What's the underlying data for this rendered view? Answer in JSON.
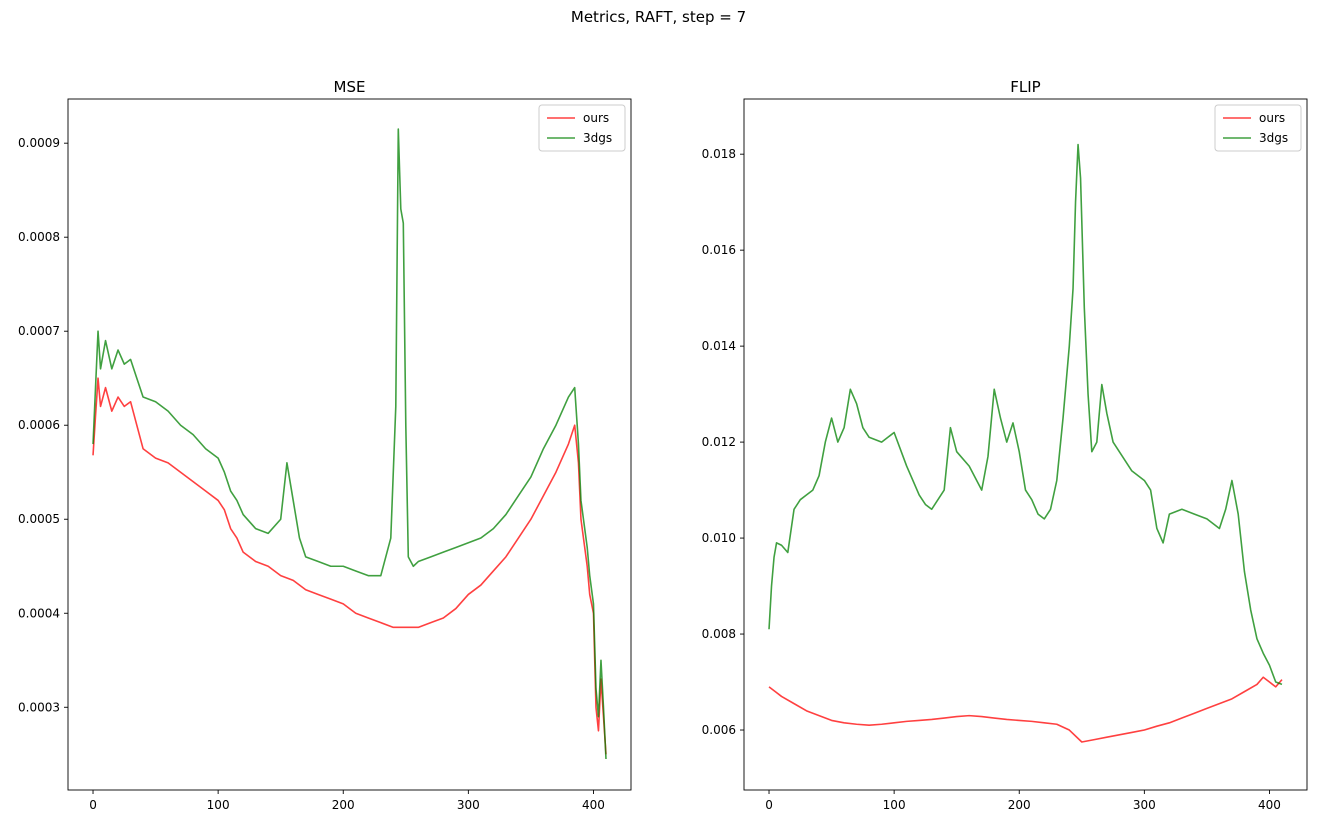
{
  "figure": {
    "suptitle": "Metrics, RAFT, step = 7"
  },
  "chart_data": [
    {
      "type": "line",
      "title": "MSE",
      "xlabel": "",
      "ylabel": "",
      "xlim": [
        -20,
        430
      ],
      "ylim": [
        0.000212,
        0.000947
      ],
      "xticks": [
        0,
        100,
        200,
        300,
        400
      ],
      "xtick_labels": [
        "0",
        "100",
        "200",
        "300",
        "400"
      ],
      "yticks": [
        0.0003,
        0.0004,
        0.0005,
        0.0006,
        0.0007,
        0.0008,
        0.0009
      ],
      "ytick_labels": [
        "0.0003",
        "0.0004",
        "0.0005",
        "0.0006",
        "0.0007",
        "0.0008",
        "0.0009"
      ],
      "grid": false,
      "legend": "top-right",
      "series": [
        {
          "name": "ours",
          "color": "#ff0000",
          "alpha": 0.75,
          "points": [
            [
              0,
              0.000568
            ],
            [
              2,
              0.00061
            ],
            [
              4,
              0.00065
            ],
            [
              6,
              0.00062
            ],
            [
              10,
              0.00064
            ],
            [
              15,
              0.000615
            ],
            [
              20,
              0.00063
            ],
            [
              25,
              0.00062
            ],
            [
              30,
              0.000625
            ],
            [
              35,
              0.0006
            ],
            [
              40,
              0.000575
            ],
            [
              50,
              0.000565
            ],
            [
              60,
              0.00056
            ],
            [
              70,
              0.00055
            ],
            [
              80,
              0.00054
            ],
            [
              90,
              0.00053
            ],
            [
              100,
              0.00052
            ],
            [
              105,
              0.00051
            ],
            [
              110,
              0.00049
            ],
            [
              115,
              0.00048
            ],
            [
              120,
              0.000465
            ],
            [
              130,
              0.000455
            ],
            [
              140,
              0.00045
            ],
            [
              150,
              0.00044
            ],
            [
              160,
              0.000435
            ],
            [
              170,
              0.000425
            ],
            [
              180,
              0.00042
            ],
            [
              190,
              0.000415
            ],
            [
              200,
              0.00041
            ],
            [
              210,
              0.0004
            ],
            [
              220,
              0.000395
            ],
            [
              230,
              0.00039
            ],
            [
              240,
              0.000385
            ],
            [
              250,
              0.000385
            ],
            [
              260,
              0.000385
            ],
            [
              270,
              0.00039
            ],
            [
              280,
              0.000395
            ],
            [
              290,
              0.000405
            ],
            [
              300,
              0.00042
            ],
            [
              310,
              0.00043
            ],
            [
              320,
              0.000445
            ],
            [
              330,
              0.00046
            ],
            [
              340,
              0.00048
            ],
            [
              350,
              0.0005
            ],
            [
              360,
              0.000525
            ],
            [
              370,
              0.00055
            ],
            [
              380,
              0.00058
            ],
            [
              385,
              0.0006
            ],
            [
              388,
              0.00056
            ],
            [
              390,
              0.0005
            ],
            [
              393,
              0.00047
            ],
            [
              395,
              0.00045
            ],
            [
              397,
              0.00042
            ],
            [
              400,
              0.0004
            ],
            [
              402,
              0.0003
            ],
            [
              404,
              0.000275
            ],
            [
              406,
              0.00033
            ],
            [
              408,
              0.00029
            ],
            [
              410,
              0.00025
            ]
          ]
        },
        {
          "name": "3dgs",
          "color": "#008000",
          "alpha": 0.75,
          "points": [
            [
              0,
              0.00058
            ],
            [
              2,
              0.00064
            ],
            [
              4,
              0.0007
            ],
            [
              6,
              0.00066
            ],
            [
              10,
              0.00069
            ],
            [
              15,
              0.00066
            ],
            [
              20,
              0.00068
            ],
            [
              25,
              0.000665
            ],
            [
              30,
              0.00067
            ],
            [
              35,
              0.00065
            ],
            [
              40,
              0.00063
            ],
            [
              50,
              0.000625
            ],
            [
              60,
              0.000615
            ],
            [
              70,
              0.0006
            ],
            [
              80,
              0.00059
            ],
            [
              90,
              0.000575
            ],
            [
              100,
              0.000565
            ],
            [
              105,
              0.00055
            ],
            [
              110,
              0.00053
            ],
            [
              115,
              0.00052
            ],
            [
              120,
              0.000505
            ],
            [
              130,
              0.00049
            ],
            [
              140,
              0.000485
            ],
            [
              150,
              0.0005
            ],
            [
              155,
              0.00056
            ],
            [
              160,
              0.00052
            ],
            [
              165,
              0.00048
            ],
            [
              170,
              0.00046
            ],
            [
              180,
              0.000455
            ],
            [
              190,
              0.00045
            ],
            [
              200,
              0.00045
            ],
            [
              210,
              0.000445
            ],
            [
              220,
              0.00044
            ],
            [
              230,
              0.00044
            ],
            [
              238,
              0.00048
            ],
            [
              242,
              0.00062
            ],
            [
              244,
              0.000915
            ],
            [
              246,
              0.00083
            ],
            [
              248,
              0.000815
            ],
            [
              250,
              0.0006
            ],
            [
              252,
              0.00046
            ],
            [
              256,
              0.00045
            ],
            [
              260,
              0.000455
            ],
            [
              270,
              0.00046
            ],
            [
              280,
              0.000465
            ],
            [
              290,
              0.00047
            ],
            [
              300,
              0.000475
            ],
            [
              310,
              0.00048
            ],
            [
              320,
              0.00049
            ],
            [
              330,
              0.000505
            ],
            [
              340,
              0.000525
            ],
            [
              350,
              0.000545
            ],
            [
              360,
              0.000575
            ],
            [
              370,
              0.0006
            ],
            [
              380,
              0.00063
            ],
            [
              385,
              0.00064
            ],
            [
              388,
              0.00058
            ],
            [
              390,
              0.00052
            ],
            [
              393,
              0.00049
            ],
            [
              395,
              0.00047
            ],
            [
              397,
              0.00044
            ],
            [
              400,
              0.00041
            ],
            [
              402,
              0.00032
            ],
            [
              404,
              0.00029
            ],
            [
              406,
              0.00035
            ],
            [
              408,
              0.0003
            ],
            [
              410,
              0.000245
            ]
          ]
        }
      ]
    },
    {
      "type": "line",
      "title": "FLIP",
      "xlabel": "",
      "ylabel": "",
      "xlim": [
        -20,
        430
      ],
      "ylim": [
        0.00475,
        0.01915
      ],
      "xticks": [
        0,
        100,
        200,
        300,
        400
      ],
      "xtick_labels": [
        "0",
        "100",
        "200",
        "300",
        "400"
      ],
      "yticks": [
        0.006,
        0.008,
        0.01,
        0.012,
        0.014,
        0.016,
        0.018
      ],
      "ytick_labels": [
        "0.006",
        "0.008",
        "0.010",
        "0.012",
        "0.014",
        "0.016",
        "0.018"
      ],
      "grid": false,
      "legend": "top-right",
      "series": [
        {
          "name": "ours",
          "color": "#ff0000",
          "alpha": 0.75,
          "points": [
            [
              0,
              0.0069
            ],
            [
              5,
              0.0068
            ],
            [
              10,
              0.0067
            ],
            [
              20,
              0.00655
            ],
            [
              30,
              0.0064
            ],
            [
              40,
              0.0063
            ],
            [
              50,
              0.0062
            ],
            [
              60,
              0.00615
            ],
            [
              70,
              0.00612
            ],
            [
              80,
              0.0061
            ],
            [
              90,
              0.00612
            ],
            [
              100,
              0.00615
            ],
            [
              110,
              0.00618
            ],
            [
              120,
              0.0062
            ],
            [
              130,
              0.00622
            ],
            [
              140,
              0.00625
            ],
            [
              150,
              0.00628
            ],
            [
              160,
              0.0063
            ],
            [
              170,
              0.00628
            ],
            [
              180,
              0.00625
            ],
            [
              190,
              0.00622
            ],
            [
              200,
              0.0062
            ],
            [
              210,
              0.00618
            ],
            [
              220,
              0.00615
            ],
            [
              230,
              0.00612
            ],
            [
              240,
              0.006
            ],
            [
              250,
              0.00575
            ],
            [
              260,
              0.0058
            ],
            [
              270,
              0.00585
            ],
            [
              280,
              0.0059
            ],
            [
              290,
              0.00595
            ],
            [
              300,
              0.006
            ],
            [
              310,
              0.00608
            ],
            [
              320,
              0.00615
            ],
            [
              330,
              0.00625
            ],
            [
              340,
              0.00635
            ],
            [
              350,
              0.00645
            ],
            [
              360,
              0.00655
            ],
            [
              370,
              0.00665
            ],
            [
              380,
              0.0068
            ],
            [
              390,
              0.00695
            ],
            [
              395,
              0.0071
            ],
            [
              400,
              0.007
            ],
            [
              405,
              0.0069
            ],
            [
              410,
              0.00705
            ]
          ]
        },
        {
          "name": "3dgs",
          "color": "#008000",
          "alpha": 0.75,
          "points": [
            [
              0,
              0.0081
            ],
            [
              2,
              0.009
            ],
            [
              4,
              0.0096
            ],
            [
              6,
              0.0099
            ],
            [
              10,
              0.00985
            ],
            [
              15,
              0.0097
            ],
            [
              20,
              0.0106
            ],
            [
              25,
              0.0108
            ],
            [
              30,
              0.0109
            ],
            [
              35,
              0.011
            ],
            [
              40,
              0.0113
            ],
            [
              45,
              0.012
            ],
            [
              50,
              0.0125
            ],
            [
              55,
              0.012
            ],
            [
              60,
              0.0123
            ],
            [
              65,
              0.0131
            ],
            [
              70,
              0.0128
            ],
            [
              75,
              0.0123
            ],
            [
              80,
              0.0121
            ],
            [
              90,
              0.012
            ],
            [
              100,
              0.0122
            ],
            [
              110,
              0.0115
            ],
            [
              115,
              0.0112
            ],
            [
              120,
              0.0109
            ],
            [
              125,
              0.0107
            ],
            [
              130,
              0.0106
            ],
            [
              140,
              0.011
            ],
            [
              145,
              0.0123
            ],
            [
              150,
              0.0118
            ],
            [
              160,
              0.0115
            ],
            [
              170,
              0.011
            ],
            [
              175,
              0.0117
            ],
            [
              180,
              0.0131
            ],
            [
              185,
              0.0125
            ],
            [
              190,
              0.012
            ],
            [
              195,
              0.0124
            ],
            [
              200,
              0.0118
            ],
            [
              205,
              0.011
            ],
            [
              210,
              0.0108
            ],
            [
              215,
              0.0105
            ],
            [
              220,
              0.0104
            ],
            [
              225,
              0.0106
            ],
            [
              230,
              0.0112
            ],
            [
              235,
              0.0125
            ],
            [
              240,
              0.014
            ],
            [
              243,
              0.0152
            ],
            [
              245,
              0.017
            ],
            [
              247,
              0.0182
            ],
            [
              249,
              0.0175
            ],
            [
              252,
              0.0148
            ],
            [
              255,
              0.013
            ],
            [
              258,
              0.0118
            ],
            [
              262,
              0.012
            ],
            [
              266,
              0.0132
            ],
            [
              270,
              0.0126
            ],
            [
              275,
              0.012
            ],
            [
              280,
              0.0118
            ],
            [
              290,
              0.0114
            ],
            [
              300,
              0.0112
            ],
            [
              305,
              0.011
            ],
            [
              310,
              0.0102
            ],
            [
              315,
              0.0099
            ],
            [
              320,
              0.0105
            ],
            [
              330,
              0.0106
            ],
            [
              340,
              0.0105
            ],
            [
              350,
              0.0104
            ],
            [
              360,
              0.0102
            ],
            [
              365,
              0.0106
            ],
            [
              370,
              0.0112
            ],
            [
              375,
              0.0105
            ],
            [
              380,
              0.0093
            ],
            [
              385,
              0.0085
            ],
            [
              390,
              0.0079
            ],
            [
              395,
              0.0076
            ],
            [
              400,
              0.00735
            ],
            [
              405,
              0.007
            ],
            [
              410,
              0.00695
            ]
          ]
        }
      ]
    }
  ]
}
